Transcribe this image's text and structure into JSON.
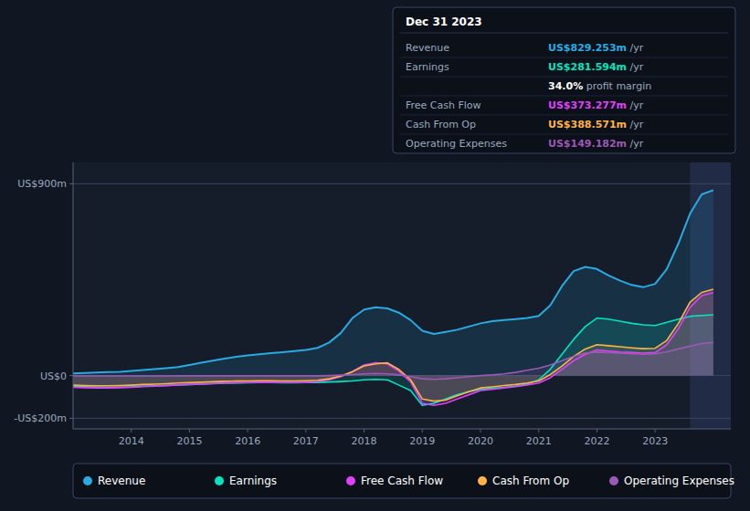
{
  "chart_data": {
    "type": "area",
    "x": [
      2013.0,
      2013.2,
      2013.4,
      2013.6,
      2013.8,
      2014.0,
      2014.2,
      2014.4,
      2014.6,
      2014.8,
      2015.0,
      2015.2,
      2015.4,
      2015.6,
      2015.8,
      2016.0,
      2016.2,
      2016.4,
      2016.6,
      2016.8,
      2017.0,
      2017.2,
      2017.4,
      2017.6,
      2017.8,
      2018.0,
      2018.2,
      2018.4,
      2018.6,
      2018.8,
      2019.0,
      2019.2,
      2019.4,
      2019.6,
      2019.8,
      2020.0,
      2020.2,
      2020.4,
      2020.6,
      2020.8,
      2021.0,
      2021.2,
      2021.4,
      2021.6,
      2021.8,
      2022.0,
      2022.2,
      2022.4,
      2022.6,
      2022.8,
      2023.0,
      2023.2,
      2023.4,
      2023.6,
      2023.8,
      2024.0
    ],
    "series": [
      {
        "name": "Revenue",
        "color": "#29abe2",
        "values": [
          10,
          12,
          14,
          16,
          18,
          22,
          26,
          30,
          35,
          40,
          50,
          60,
          70,
          80,
          88,
          95,
          100,
          105,
          110,
          115,
          120,
          130,
          155,
          200,
          270,
          310,
          320,
          315,
          295,
          260,
          210,
          195,
          205,
          215,
          230,
          245,
          255,
          260,
          265,
          270,
          280,
          330,
          420,
          490,
          510,
          500,
          470,
          445,
          425,
          415,
          430,
          500,
          620,
          760,
          850,
          870
        ]
      },
      {
        "name": "Earnings",
        "color": "#00e5c0",
        "values": [
          -50,
          -52,
          -54,
          -55,
          -55,
          -53,
          -50,
          -48,
          -46,
          -44,
          -42,
          -40,
          -38,
          -36,
          -35,
          -34,
          -33,
          -33,
          -34,
          -34,
          -33,
          -32,
          -30,
          -28,
          -25,
          -20,
          -18,
          -20,
          -45,
          -70,
          -140,
          -130,
          -110,
          -90,
          -75,
          -65,
          -60,
          -55,
          -50,
          -40,
          -20,
          30,
          100,
          170,
          230,
          270,
          265,
          255,
          245,
          238,
          235,
          250,
          265,
          278,
          282,
          285
        ]
      },
      {
        "name": "Free Cash Flow",
        "color": "#e040fb",
        "values": [
          -55,
          -57,
          -58,
          -58,
          -57,
          -55,
          -52,
          -50,
          -47,
          -44,
          -42,
          -40,
          -37,
          -35,
          -34,
          -33,
          -32,
          -32,
          -33,
          -33,
          -32,
          -28,
          -20,
          -5,
          20,
          50,
          60,
          55,
          20,
          -30,
          -130,
          -140,
          -130,
          -110,
          -90,
          -70,
          -65,
          -58,
          -52,
          -44,
          -35,
          -10,
          30,
          70,
          100,
          120,
          115,
          110,
          108,
          105,
          108,
          145,
          220,
          320,
          375,
          390
        ]
      },
      {
        "name": "Cash From Op",
        "color": "#ffb347",
        "values": [
          -45,
          -47,
          -48,
          -48,
          -47,
          -45,
          -42,
          -40,
          -38,
          -35,
          -33,
          -31,
          -29,
          -27,
          -26,
          -25,
          -24,
          -24,
          -25,
          -25,
          -24,
          -22,
          -15,
          -2,
          18,
          45,
          55,
          60,
          28,
          -20,
          -110,
          -120,
          -115,
          -95,
          -76,
          -58,
          -53,
          -47,
          -42,
          -35,
          -25,
          5,
          45,
          90,
          125,
          145,
          140,
          135,
          130,
          126,
          128,
          165,
          245,
          345,
          390,
          405
        ]
      },
      {
        "name": "Operating Expenses",
        "color": "#9b59b6",
        "values": [
          -2,
          -2,
          -2,
          -2,
          -2,
          -2,
          -2,
          -2,
          -2,
          -1,
          -1,
          -1,
          -1,
          -1,
          -1,
          -1,
          -1,
          -1,
          -1,
          -1,
          -1,
          -1,
          0,
          2,
          5,
          8,
          10,
          8,
          3,
          -5,
          -15,
          -18,
          -15,
          -10,
          -5,
          0,
          3,
          8,
          15,
          25,
          35,
          50,
          70,
          90,
          105,
          110,
          108,
          105,
          102,
          100,
          102,
          112,
          125,
          138,
          150,
          155
        ]
      }
    ],
    "xlim": [
      2013.0,
      2024.3
    ],
    "xticks": [
      2014,
      2015,
      2016,
      2017,
      2018,
      2019,
      2020,
      2021,
      2022,
      2023
    ],
    "ylim": [
      -250,
      1000
    ],
    "yticks": [
      {
        "value": -200,
        "label": "-US$200m"
      },
      {
        "value": 0,
        "label": "US$0"
      },
      {
        "value": 900,
        "label": "US$900m"
      }
    ],
    "grid": true,
    "legend": "bottom",
    "highlight_span": [
      2023.6,
      2024.3
    ],
    "info_box": {
      "title": "Dec 31 2023",
      "rows": [
        {
          "label": "Revenue",
          "value": "US$829.253m",
          "suffix": " /yr",
          "color": "#29abe2"
        },
        {
          "label": "Earnings",
          "value": "US$281.594m",
          "suffix": " /yr",
          "color": "#00e5c0"
        },
        {
          "value": "34.0%",
          "suffix": " profit margin",
          "color": "white"
        },
        {
          "label": "Free Cash Flow",
          "value": "US$373.277m",
          "suffix": " /yr",
          "color": "#e040fb"
        },
        {
          "label": "Cash From Op",
          "value": "US$388.571m",
          "suffix": " /yr",
          "color": "#ffb347"
        },
        {
          "label": "Operating Expenses",
          "value": "US$149.182m",
          "suffix": " /yr",
          "color": "#9b59b6"
        }
      ]
    }
  }
}
